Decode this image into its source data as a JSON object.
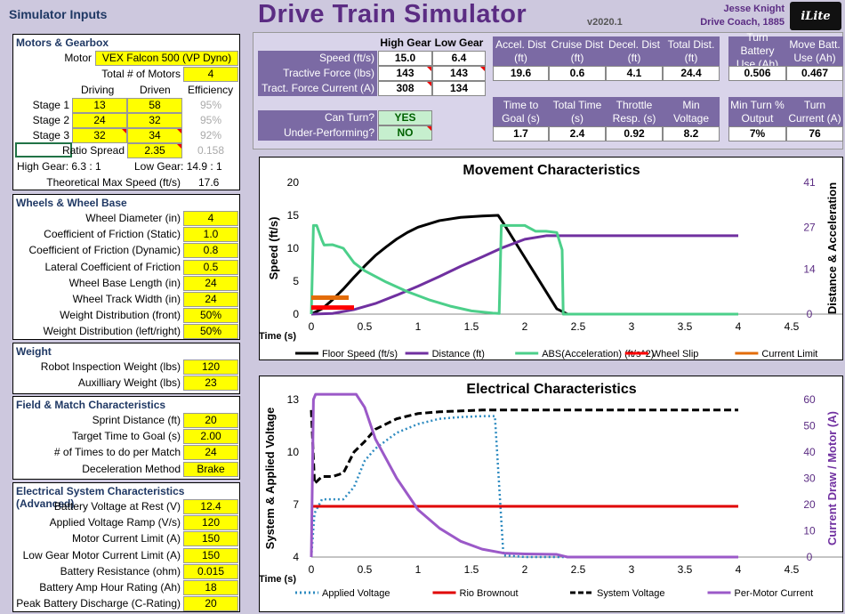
{
  "header": {
    "left_title": "Simulator Inputs",
    "app_title": "Drive Train Simulator",
    "version": "v2020.1",
    "author_name": "Jesse Knight",
    "author_org": "Drive Coach, 1885",
    "logo_text": "iLite"
  },
  "motors": {
    "title": "Motors & Gearbox",
    "motor_label": "Motor",
    "motor_value": "VEX Falcon 500 (VP Dyno)",
    "total_label": "Total # of Motors",
    "total_value": "4",
    "col_driving": "Driving",
    "col_driven": "Driven",
    "col_efficiency": "Efficiency",
    "stages": [
      {
        "label": "Stage 1",
        "driving": "13",
        "driven": "58",
        "eff": "95%"
      },
      {
        "label": "Stage 2",
        "driving": "24",
        "driven": "32",
        "eff": "95%"
      },
      {
        "label": "Stage 3",
        "driving": "32",
        "driven": "34",
        "eff": "92%"
      }
    ],
    "ratio_label": "Ratio Spread",
    "ratio_value": "2.35",
    "ratio_gray": "0.158",
    "high_gear": "High Gear:  6.3 : 1",
    "low_gear": "Low Gear:  14.9 : 1",
    "max_speed_label": "Theoretical Max Speed (ft/s)",
    "max_speed_value": "17.6"
  },
  "wheels": {
    "title": "Wheels & Wheel Base",
    "rows": [
      {
        "label": "Wheel Diameter (in)",
        "value": "4"
      },
      {
        "label": "Coefficient of Friction (Static)",
        "value": "1.0"
      },
      {
        "label": "Coefficient of Friction (Dynamic)",
        "value": "0.8"
      },
      {
        "label": "Lateral Coefficient of Friction",
        "value": "0.5"
      },
      {
        "label": "Wheel Base Length (in)",
        "value": "24"
      },
      {
        "label": "Wheel Track Width (in)",
        "value": "24"
      },
      {
        "label": "Weight Distribution (front)",
        "value": "50%"
      },
      {
        "label": "Weight Distribution (left/right)",
        "value": "50%"
      }
    ]
  },
  "weight": {
    "title": "Weight",
    "rows": [
      {
        "label": "Robot Inspection Weight (lbs)",
        "value": "120"
      },
      {
        "label": "Auxilliary Weight (lbs)",
        "value": "23"
      }
    ]
  },
  "field": {
    "title": "Field & Match Characteristics",
    "rows": [
      {
        "label": "Sprint Distance (ft)",
        "value": "20"
      },
      {
        "label": "Target  Time to Goal (s)",
        "value": "2.00"
      },
      {
        "label": "# of Times to do per Match",
        "value": "24"
      },
      {
        "label": "Deceleration Method",
        "value": "Brake"
      }
    ]
  },
  "electrical": {
    "title": "Electrical System Characteristics (Advanced)",
    "rows": [
      {
        "label": "Battery Voltage at Rest (V)",
        "value": "12.4"
      },
      {
        "label": "Applied Voltage Ramp (V/s)",
        "value": "120"
      },
      {
        "label": "Motor Current Limit (A)",
        "value": "150"
      },
      {
        "label": "Low Gear Motor Current Limit (A)",
        "value": "150"
      },
      {
        "label": "Battery Resistance (ohm)",
        "value": "0.015"
      },
      {
        "label": "Battery Amp Hour Rating (Ah)",
        "value": "18"
      },
      {
        "label": "Peak Battery Discharge (C-Rating)",
        "value": "20"
      }
    ]
  },
  "results": {
    "col_high": "High Gear",
    "col_low": "Low Gear",
    "speed_label": "Speed (ft/s)",
    "speed_high": "15.0",
    "speed_low": "6.4",
    "tractive_label": "Tractive Force (lbs)",
    "tractive_high": "143",
    "tractive_low": "143",
    "tract_current_label": "Tract. Force Current (A)",
    "tract_current_high": "308",
    "tract_current_low": "134",
    "can_turn_label": "Can Turn?",
    "can_turn_value": "YES",
    "under_label": "Under-Performing?",
    "under_value": "NO",
    "dist_headers": [
      "Accel. Dist (ft)",
      "Cruise Dist (ft)",
      "Decel. Dist (ft)",
      "Total Dist. (ft)"
    ],
    "dist_values": [
      "19.6",
      "0.6",
      "4.1",
      "24.4"
    ],
    "time_headers": [
      "Time to Goal (s)",
      "Total Time (s)",
      "Throttle Resp. (s)",
      "Min Voltage"
    ],
    "time_values": [
      "1.7",
      "2.4",
      "0.92",
      "8.2"
    ],
    "batt_headers": [
      "Turn Battery Use (Ah)",
      "Move Batt. Use (Ah)"
    ],
    "batt_values": [
      "0.506",
      "0.467"
    ],
    "turn_headers": [
      "Min Turn % Output",
      "Turn Current (A)"
    ],
    "turn_values": [
      "7%",
      "76"
    ]
  },
  "chart_data": [
    {
      "type": "line",
      "title": "Movement Characteristics",
      "xlabel": "Time (s)",
      "ylabel": "Speed (ft/s)",
      "y2label": "Distance & Acceleration",
      "xlim": [
        0,
        4.5
      ],
      "xticks": [
        "0",
        "0.5",
        "1",
        "1.5",
        "2",
        "2.5",
        "3",
        "3.5",
        "4",
        "4.5"
      ],
      "ylim": [
        0,
        20
      ],
      "yticks": [
        "0",
        "5",
        "10",
        "15",
        "20"
      ],
      "y2ticks": [
        "0",
        "14",
        "27",
        "41"
      ],
      "y2lim": [
        0,
        41
      ],
      "legend_position": "bottom",
      "series": [
        {
          "name": "Floor Speed (ft/s)",
          "color": "#000000",
          "axis": "y",
          "x": [
            0,
            0.1,
            0.2,
            0.3,
            0.4,
            0.5,
            0.6,
            0.7,
            0.8,
            0.9,
            1.0,
            1.2,
            1.4,
            1.6,
            1.75,
            1.8,
            1.9,
            2.0,
            2.1,
            2.2,
            2.3,
            2.4
          ],
          "y": [
            0,
            0.8,
            2.2,
            3.8,
            5.6,
            7.3,
            8.9,
            10.2,
            11.4,
            12.4,
            13.2,
            14.2,
            14.7,
            14.9,
            15.0,
            13.8,
            11.2,
            8.6,
            6.0,
            3.4,
            0.8,
            0
          ]
        },
        {
          "name": "Distance (ft)",
          "color": "#7030a0",
          "axis": "y2",
          "x": [
            0,
            0.2,
            0.4,
            0.6,
            0.8,
            1.0,
            1.2,
            1.4,
            1.6,
            1.8,
            2.0,
            2.2,
            2.4,
            4.0
          ],
          "y": [
            0,
            0.2,
            1.4,
            3.3,
            5.9,
            8.7,
            11.7,
            14.9,
            17.8,
            20.8,
            23.3,
            24.4,
            24.4,
            24.4
          ]
        },
        {
          "name": "ABS(Acceleration) (ft/s^2)",
          "color": "#4ccf8a",
          "axis": "y2",
          "x": [
            0,
            0.02,
            0.05,
            0.1,
            0.12,
            0.2,
            0.3,
            0.4,
            0.5,
            0.7,
            0.9,
            1.1,
            1.3,
            1.5,
            1.7,
            1.76,
            1.78,
            1.8,
            1.9,
            2.0,
            2.1,
            2.2,
            2.3,
            2.35,
            2.36,
            4.0
          ],
          "y": [
            0,
            27.6,
            27.6,
            23.0,
            21.5,
            21.6,
            20.5,
            16.0,
            13.5,
            10.0,
            7.0,
            4.5,
            2.5,
            1.0,
            0.3,
            0.2,
            27.6,
            27.6,
            27.6,
            27.6,
            25.8,
            25.8,
            25.4,
            20.0,
            0,
            0
          ]
        },
        {
          "name": "Wheel Slip",
          "color": "#ff0000",
          "axis": "y",
          "x": [
            0,
            0.4
          ],
          "y": [
            1.0,
            1.0
          ]
        },
        {
          "name": "Current Limit",
          "color": "#e36c09",
          "axis": "y",
          "x": [
            0,
            0.35
          ],
          "y": [
            2.5,
            2.5
          ]
        }
      ]
    },
    {
      "type": "line",
      "title": "Electrical Characteristics",
      "xlabel": "Time (s)",
      "ylabel": "System & Applied Voltage",
      "y2label": "Current Draw / Motor (A)",
      "xlim": [
        0,
        4.5
      ],
      "xticks": [
        "0",
        "0.5",
        "1",
        "1.5",
        "2",
        "2.5",
        "3",
        "3.5",
        "4",
        "4.5"
      ],
      "ylim": [
        4,
        13
      ],
      "yticks": [
        "4",
        "7",
        "10",
        "13"
      ],
      "y2lim": [
        0,
        60
      ],
      "y2ticks": [
        "0",
        "10",
        "20",
        "30",
        "40",
        "50",
        "60"
      ],
      "legend_position": "bottom",
      "series": [
        {
          "name": "Applied Voltage",
          "color": "#2e8bc0",
          "axis": "y",
          "dash": "dot",
          "x": [
            0,
            0.03,
            0.1,
            0.2,
            0.3,
            0.4,
            0.5,
            0.6,
            0.8,
            1.0,
            1.2,
            1.4,
            1.6,
            1.72,
            1.8,
            2.0,
            4.0
          ],
          "y": [
            4,
            6.5,
            7.3,
            7.3,
            7.3,
            8.0,
            9.5,
            10.2,
            11.1,
            11.6,
            11.9,
            12.0,
            12.05,
            12.05,
            4.1,
            4.0,
            4.0
          ]
        },
        {
          "name": "Rio Brownout",
          "color": "#e00000",
          "axis": "y",
          "x": [
            0,
            4.0
          ],
          "y": [
            6.9,
            6.9
          ]
        },
        {
          "name": "System Voltage",
          "color": "#000000",
          "axis": "y",
          "dash": "dash",
          "x": [
            0,
            0.03,
            0.1,
            0.2,
            0.3,
            0.4,
            0.5,
            0.6,
            0.8,
            1.0,
            1.2,
            1.4,
            1.6,
            1.8,
            2.0,
            4.0
          ],
          "y": [
            12.4,
            8.2,
            8.6,
            8.6,
            8.8,
            10.0,
            10.6,
            11.3,
            11.9,
            12.2,
            12.3,
            12.35,
            12.4,
            12.4,
            12.4,
            12.4
          ]
        },
        {
          "name": "Per-Motor Current",
          "color": "#9b59c8",
          "axis": "y2",
          "x": [
            0,
            0.02,
            0.04,
            0.42,
            0.5,
            0.6,
            0.8,
            1.0,
            1.2,
            1.4,
            1.6,
            1.8,
            2.0,
            2.3,
            2.4,
            4.0
          ],
          "y": [
            0,
            60,
            62,
            62,
            57,
            45,
            30,
            18,
            11,
            6,
            3,
            1.5,
            1.2,
            1.0,
            0,
            0
          ]
        }
      ]
    }
  ]
}
